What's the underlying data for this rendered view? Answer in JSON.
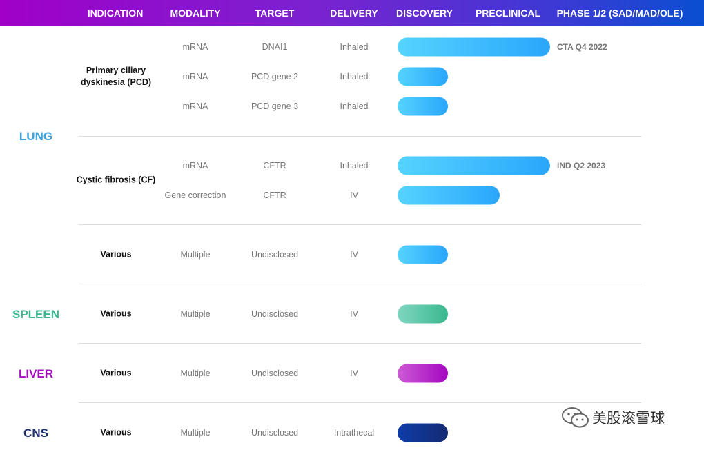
{
  "header": {
    "columns": [
      "INDICATION",
      "MODALITY",
      "TARGET",
      "DELIVERY",
      "DISCOVERY",
      "PRECLINICAL",
      "PHASE 1/2 (SAD/MAD/OLE)"
    ]
  },
  "organs": [
    {
      "label": "LUNG",
      "color": "#3aa3e3"
    },
    {
      "label": "SPLEEN",
      "color": "#3ab890"
    },
    {
      "label": "LIVER",
      "color": "#a60fbf"
    },
    {
      "label": "CNS",
      "color": "#1c2e6e"
    }
  ],
  "indications": [
    "Primary ciliary dyskinesia (PCD)",
    "Cystic fibrosis (CF)",
    "Various",
    "Various",
    "Various",
    "Various"
  ],
  "milestones": [
    "CTA Q4 2022",
    "IND Q2 2023"
  ],
  "watermark": "美股滚雪球",
  "chart_data": {
    "type": "bar",
    "stages": [
      "DISCOVERY",
      "PRECLINICAL",
      "PHASE 1/2 (SAD/MAD/OLE)"
    ],
    "rows": [
      {
        "organ": "LUNG",
        "indication": "Primary ciliary dyskinesia (PCD)",
        "modality": "mRNA",
        "target": "DNAI1",
        "delivery": "Inhaled",
        "progress": 1.0,
        "note": "CTA Q4 2022",
        "color": "lung"
      },
      {
        "organ": "LUNG",
        "indication": "Primary ciliary dyskinesia (PCD)",
        "modality": "mRNA",
        "target": "PCD gene 2",
        "delivery": "Inhaled",
        "progress": 0.33,
        "note": "",
        "color": "lung"
      },
      {
        "organ": "LUNG",
        "indication": "Primary ciliary dyskinesia (PCD)",
        "modality": "mRNA",
        "target": "PCD gene 3",
        "delivery": "Inhaled",
        "progress": 0.33,
        "note": "",
        "color": "lung"
      },
      {
        "organ": "LUNG",
        "indication": "Cystic fibrosis (CF)",
        "modality": "mRNA",
        "target": "CFTR",
        "delivery": "Inhaled",
        "progress": 1.0,
        "note": "IND Q2 2023",
        "color": "lung"
      },
      {
        "organ": "LUNG",
        "indication": "Cystic fibrosis (CF)",
        "modality": "Gene correction",
        "target": "CFTR",
        "delivery": "IV",
        "progress": 0.67,
        "note": "",
        "color": "lung"
      },
      {
        "organ": "LUNG",
        "indication": "Various",
        "modality": "Multiple",
        "target": "Undisclosed",
        "delivery": "IV",
        "progress": 0.33,
        "note": "",
        "color": "lung"
      },
      {
        "organ": "SPLEEN",
        "indication": "Various",
        "modality": "Multiple",
        "target": "Undisclosed",
        "delivery": "IV",
        "progress": 0.33,
        "note": "",
        "color": "spleen"
      },
      {
        "organ": "LIVER",
        "indication": "Various",
        "modality": "Multiple",
        "target": "Undisclosed",
        "delivery": "IV",
        "progress": 0.33,
        "note": "",
        "color": "liver"
      },
      {
        "organ": "CNS",
        "indication": "Various",
        "modality": "Multiple",
        "target": "Undisclosed",
        "delivery": "Intrathecal",
        "progress": 0.33,
        "note": "",
        "color": "cns"
      }
    ]
  }
}
